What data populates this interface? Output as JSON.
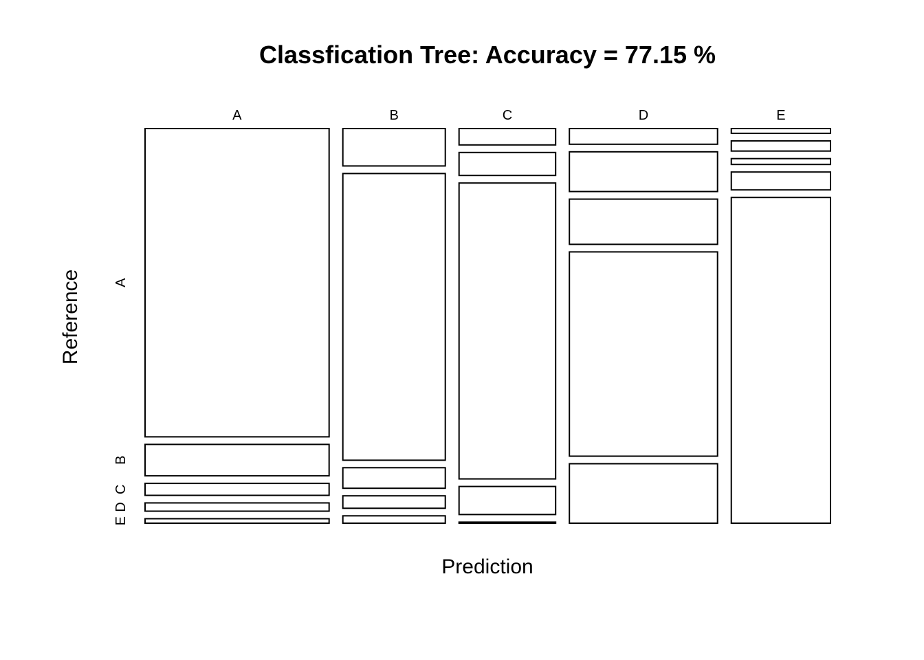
{
  "chart_data": {
    "type": "mosaic",
    "title": "Classfication Tree: Accuracy =  77.15 %",
    "xlabel": "Prediction",
    "ylabel": "Reference",
    "prediction_labels": [
      "A",
      "B",
      "C",
      "D",
      "E"
    ],
    "reference_labels": [
      "A",
      "B",
      "C",
      "D",
      "E"
    ],
    "column_shares": [
      0.282,
      0.157,
      0.148,
      0.227,
      0.152
    ],
    "row_shares_within_column": {
      "A": [
        0.824,
        0.084,
        0.032,
        0.022,
        0.012
      ],
      "B": [
        0.102,
        0.782,
        0.056,
        0.034,
        0.02
      ],
      "C": [
        0.045,
        0.063,
        0.812,
        0.077,
        0.003
      ],
      "D": [
        0.043,
        0.109,
        0.124,
        0.56,
        0.163
      ],
      "E": [
        0.013,
        0.028,
        0.016,
        0.049,
        0.894
      ]
    }
  }
}
